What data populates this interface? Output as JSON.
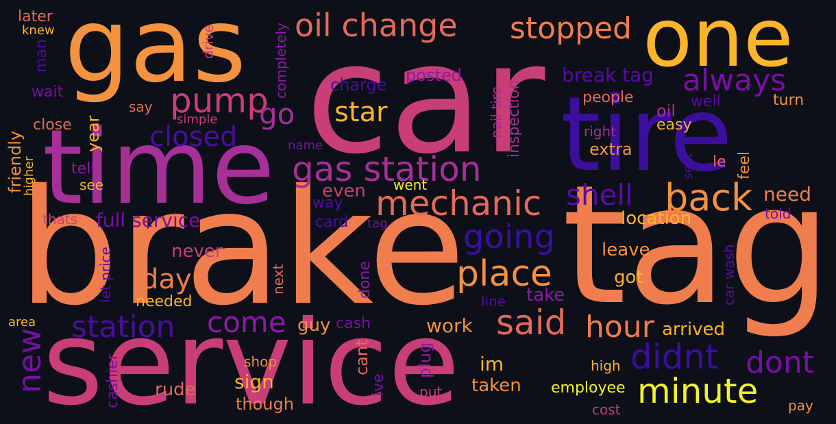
{
  "words": [
    {
      "text": "car",
      "color": "#c93e78"
    },
    {
      "text": "brake",
      "color": "#f07d4e"
    },
    {
      "text": "tag",
      "color": "#f07d4e"
    },
    {
      "text": "service",
      "color": "#c93e78"
    },
    {
      "text": "gas",
      "color": "#f3923f"
    },
    {
      "text": "time",
      "color": "#a72f98"
    },
    {
      "text": "tire",
      "color": "#3b0f9b"
    },
    {
      "text": "one",
      "color": "#fcb42a"
    },
    {
      "text": "oil change",
      "color": "#e56a5b"
    },
    {
      "text": "stopped",
      "color": "#f07d4e"
    },
    {
      "text": "pump",
      "color": "#c93e78"
    },
    {
      "text": "go",
      "color": "#a72f98"
    },
    {
      "text": "closed",
      "color": "#4a0da0"
    },
    {
      "text": "gas station",
      "color": "#a72f98"
    },
    {
      "text": "always",
      "color": "#7a0ea8"
    },
    {
      "text": "star",
      "color": "#fcb42a"
    },
    {
      "text": "mechanic",
      "color": "#e56a5b"
    },
    {
      "text": "back",
      "color": "#f3923f"
    },
    {
      "text": "shell",
      "color": "#5a0aa6"
    },
    {
      "text": "going",
      "color": "#3b0f9b"
    },
    {
      "text": "place",
      "color": "#f3923f"
    },
    {
      "text": "day",
      "color": "#f07d4e"
    },
    {
      "text": "full service",
      "color": "#7a0ea8"
    },
    {
      "text": "station",
      "color": "#4a0da0"
    },
    {
      "text": "come",
      "color": "#8f1aa8"
    },
    {
      "text": "said",
      "color": "#e56a5b"
    },
    {
      "text": "hour",
      "color": "#f07d4e"
    },
    {
      "text": "didnt",
      "color": "#3b0f9b"
    },
    {
      "text": "dont",
      "color": "#7a0ea8"
    },
    {
      "text": "minute",
      "color": "#f3f22a"
    },
    {
      "text": "new",
      "color": "#7a0ea8"
    },
    {
      "text": "need",
      "color": "#f07d4e"
    },
    {
      "text": "location",
      "color": "#fcb42a"
    },
    {
      "text": "even",
      "color": "#c93e78"
    },
    {
      "text": "never",
      "color": "#c93e78"
    },
    {
      "text": "take",
      "color": "#8f1aa8"
    },
    {
      "text": "got",
      "color": "#fcb42a"
    },
    {
      "text": "leave",
      "color": "#f3923f"
    },
    {
      "text": "im",
      "color": "#fcb42a"
    },
    {
      "text": "guy",
      "color": "#f3923f"
    },
    {
      "text": "work",
      "color": "#f3923f"
    },
    {
      "text": "arrived",
      "color": "#fcb42a"
    },
    {
      "text": "sign",
      "color": "#fcb42a"
    },
    {
      "text": "rude",
      "color": "#e56a5b"
    },
    {
      "text": "taken",
      "color": "#f3923f"
    },
    {
      "text": "employee",
      "color": "#f3f22a"
    },
    {
      "text": "though",
      "color": "#f07d4e"
    },
    {
      "text": "break tag",
      "color": "#5a0aa6"
    },
    {
      "text": "extra",
      "color": "#f3923f"
    },
    {
      "text": "charge",
      "color": "#4a0da0"
    },
    {
      "text": "posted",
      "color": "#8f1aa8"
    },
    {
      "text": "people",
      "color": "#e56a5b"
    },
    {
      "text": "well",
      "color": "#5a0aa6"
    },
    {
      "text": "turn",
      "color": "#f3923f"
    },
    {
      "text": "oil",
      "color": "#a72f98"
    },
    {
      "text": "easy",
      "color": "#fcb42a"
    },
    {
      "text": "right",
      "color": "#a72f98"
    },
    {
      "text": "wait",
      "color": "#7a0ea8"
    },
    {
      "text": "say",
      "color": "#e56a5b"
    },
    {
      "text": "close",
      "color": "#e56a5b"
    },
    {
      "text": "simple",
      "color": "#c93e78"
    },
    {
      "text": "tell",
      "color": "#8f1aa8"
    },
    {
      "text": "see",
      "color": "#fcb42a"
    },
    {
      "text": "name",
      "color": "#7a0ea8"
    },
    {
      "text": "went",
      "color": "#f3f22a"
    },
    {
      "text": "way",
      "color": "#5a0aa6"
    },
    {
      "text": "card",
      "color": "#4a0da0"
    },
    {
      "text": "tag",
      "color": "#7a0ea8"
    },
    {
      "text": "thats",
      "color": "#c93e78"
    },
    {
      "text": "needed",
      "color": "#fcb42a"
    },
    {
      "text": "line",
      "color": "#5a0aa6"
    },
    {
      "text": "cash",
      "color": "#7a0ea8"
    },
    {
      "text": "shop",
      "color": "#f3923f"
    },
    {
      "text": "put",
      "color": "#c93e78"
    },
    {
      "text": "high",
      "color": "#fcb42a"
    },
    {
      "text": "cost",
      "color": "#c93e78"
    },
    {
      "text": "pay",
      "color": "#f3923f"
    },
    {
      "text": "area",
      "color": "#fcb42a"
    },
    {
      "text": "later",
      "color": "#e56a5b"
    },
    {
      "text": "knew",
      "color": "#fcb42a"
    },
    {
      "text": "told",
      "color": "#7a0ea8"
    },
    {
      "text": "le",
      "color": "#e56a5b"
    },
    {
      "text": "man",
      "color": "#4a0da0"
    },
    {
      "text": "friendly",
      "color": "#f3923f"
    },
    {
      "text": "higher",
      "color": "#fcb42a"
    },
    {
      "text": "year",
      "color": "#fcb42a"
    },
    {
      "text": "drive",
      "color": "#c93e78"
    },
    {
      "text": "completely",
      "color": "#8f1aa8"
    },
    {
      "text": "nail tire",
      "color": "#a72f98"
    },
    {
      "text": "inspection",
      "color": "#a72f98"
    },
    {
      "text": "sent",
      "color": "#4a0da0"
    },
    {
      "text": "feel",
      "color": "#f3923f"
    },
    {
      "text": "car wash",
      "color": "#5a0aa6"
    },
    {
      "text": "let price",
      "color": "#5a0aa6"
    },
    {
      "text": "next",
      "color": "#e56a5b"
    },
    {
      "text": "done",
      "color": "#8f1aa8"
    },
    {
      "text": "cant",
      "color": "#e56a5b"
    },
    {
      "text": "plug",
      "color": "#8f1aa8"
    },
    {
      "text": "ive",
      "color": "#7a0ea8"
    },
    {
      "text": "cashier",
      "color": "#7a0ea8"
    }
  ]
}
